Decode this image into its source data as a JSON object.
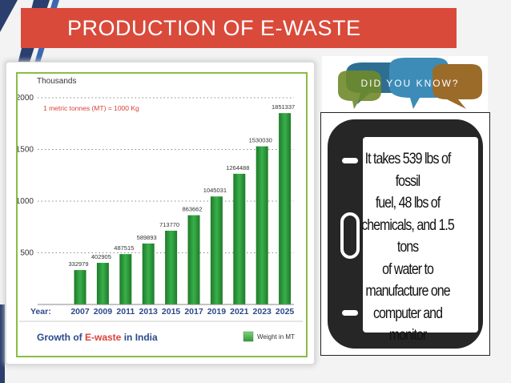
{
  "slide": {
    "title": "PRODUCTION OF E-WASTE",
    "colors": {
      "title_bg": "#d94a3a",
      "bar_green": "#2e9a3a",
      "frame_green": "#8bbd44"
    }
  },
  "did_you_know": {
    "label": "DID YOU KNOW?",
    "bubble_colors": [
      "#2f6e93",
      "#3d8cb8",
      "#6f8a2a",
      "#9b6b2a"
    ]
  },
  "fact": {
    "lines": [
      "It takes 539 lbs of fossil",
      "fuel, 48 lbs of",
      "chemicals, and 1.5 tons",
      "of water to",
      "manufacture one",
      "computer and monitor"
    ]
  },
  "chart_data": {
    "type": "bar",
    "unit_label": "Thousands",
    "annotation": "1 metric tonnes (MT) = 1000 Kg",
    "xaxis_prefix": "Year:",
    "categories": [
      "2007",
      "2009",
      "2011",
      "2013",
      "2015",
      "2017",
      "2019",
      "2021",
      "2023",
      "2025"
    ],
    "values": [
      332979,
      402905,
      487515,
      589893,
      713770,
      863662,
      1045031,
      1264488,
      1530030,
      1851337
    ],
    "value_labels": [
      "332979",
      "402905",
      "487515",
      "589893",
      "713770",
      "863662",
      "1045031",
      "1264488",
      "1530030",
      "1851337"
    ],
    "yticks": [
      "2000",
      "1500",
      "1000",
      "500"
    ],
    "ytick_values": [
      2000,
      1500,
      1000,
      500
    ],
    "ylim": [
      0,
      2000
    ],
    "caption_prefix": "Growth of ",
    "caption_highlight": "E-waste",
    "caption_suffix": " in India",
    "legend": "Weight in MT",
    "grid": "dotted horizontal"
  }
}
